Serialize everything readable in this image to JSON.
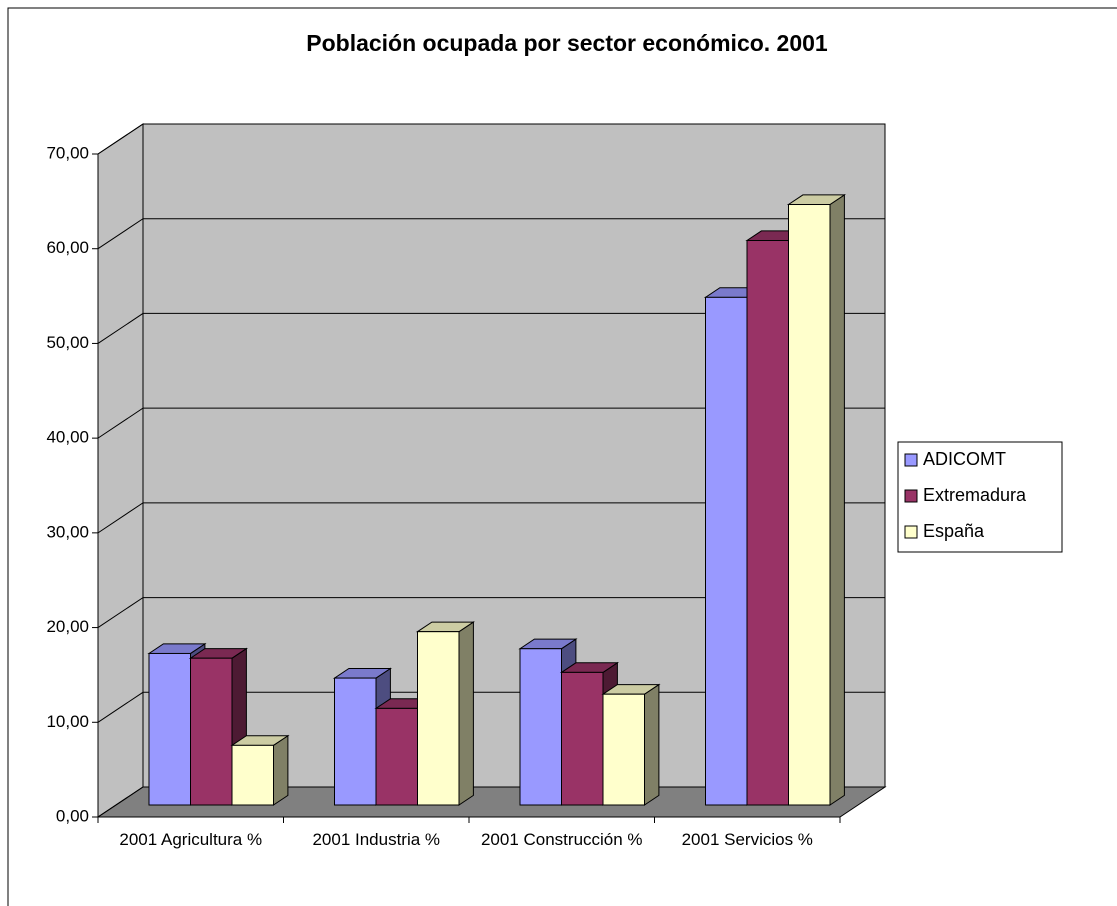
{
  "chart_data": {
    "type": "bar3d",
    "title": "Población ocupada por sector económico. 2001",
    "categories": [
      "2001 Agricultura %",
      "2001 Industria %",
      "2001 Construcción %",
      "2001 Servicios %"
    ],
    "series": [
      {
        "name": "ADICOMT",
        "color": "#9999ff",
        "values": [
          16.0,
          13.4,
          16.5,
          53.6
        ]
      },
      {
        "name": "Extremadura",
        "color": "#993366",
        "values": [
          15.5,
          10.2,
          14.0,
          59.6
        ]
      },
      {
        "name": "España",
        "color": "#ffffcc",
        "values": [
          6.3,
          18.3,
          11.7,
          63.4
        ]
      }
    ],
    "ylim": [
      0,
      70
    ],
    "yticks": [
      {
        "value": 0,
        "label": "0,00"
      },
      {
        "value": 10,
        "label": "10,00"
      },
      {
        "value": 20,
        "label": "20,00"
      },
      {
        "value": 30,
        "label": "30,00"
      },
      {
        "value": 40,
        "label": "40,00"
      },
      {
        "value": 50,
        "label": "50,00"
      },
      {
        "value": 60,
        "label": "60,00"
      },
      {
        "value": 70,
        "label": "70,00"
      }
    ],
    "grid": true,
    "legend": "right"
  }
}
